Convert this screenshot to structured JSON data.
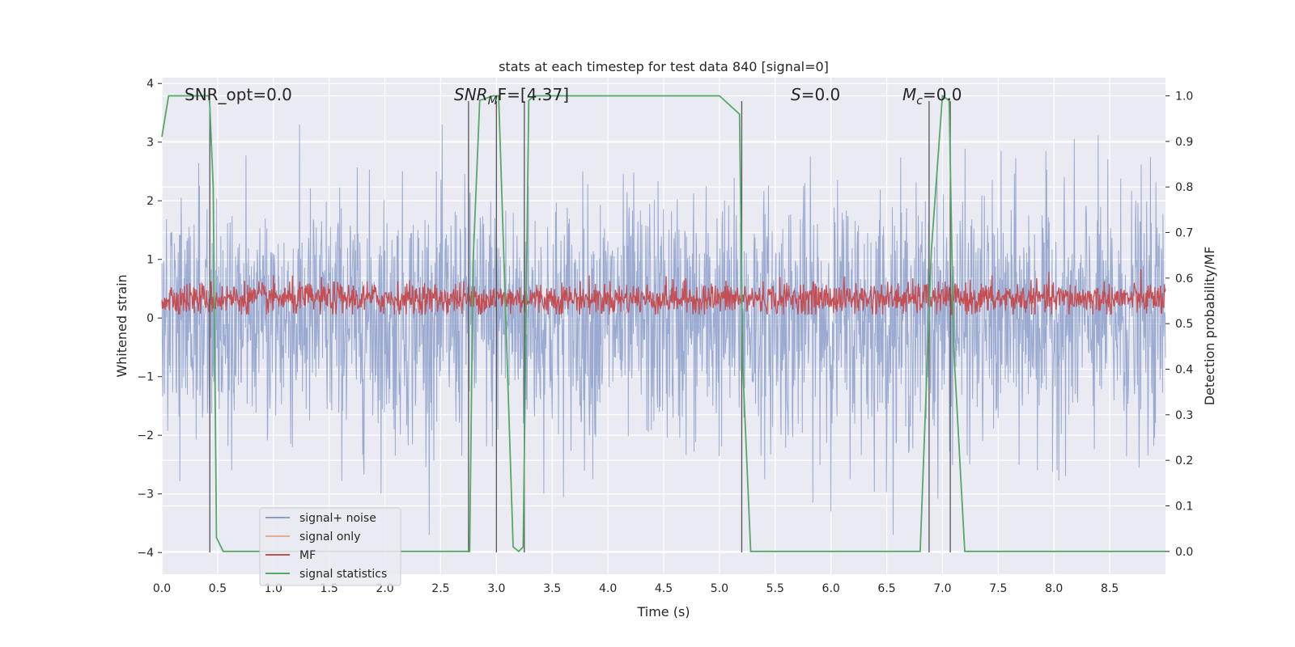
{
  "chart_data": {
    "type": "line",
    "title": "stats at each timestep for test data 840 [signal=0]",
    "xlabel": "Time (s)",
    "ylabel": "Whitened strain",
    "ylabel_right": "Detection probability/MF",
    "xlim": [
      0,
      9.0
    ],
    "ylim": [
      -4.37,
      4.1
    ],
    "ylim_right": [
      -0.05,
      1.04
    ],
    "x_ticks": [
      "0.0",
      "0.5",
      "1.0",
      "1.5",
      "2.0",
      "2.5",
      "3.0",
      "3.5",
      "4.0",
      "4.5",
      "5.0",
      "5.5",
      "6.0",
      "6.5",
      "7.0",
      "7.5",
      "8.0",
      "8.5"
    ],
    "y_ticks": [
      "4",
      "3",
      "2",
      "1",
      "0",
      "−1",
      "−2",
      "−3",
      "−4"
    ],
    "y_ticks_right": [
      "1.0",
      "0.9",
      "0.8",
      "0.7",
      "0.6",
      "0.5",
      "0.4",
      "0.3",
      "0.2",
      "0.1",
      "0.0"
    ],
    "grid": true,
    "legend_position": "lower-left",
    "annotations": {
      "snr_opt": "SNR_opt=0.0",
      "snr_mf_main": "SNR",
      "snr_mf_sub": "M",
      "snr_mf_rest": "F=[4.37]",
      "s_main": "S",
      "s_rest": "=0.0",
      "mc_main": "M",
      "mc_sub": "c",
      "mc_rest": "=0.0"
    },
    "series": [
      {
        "name": "signal+ noise",
        "color": "#8c9fcb",
        "description_range": [
          -3.7,
          3.3
        ]
      },
      {
        "name": "signal only",
        "color": "#dd8452",
        "values": []
      },
      {
        "name": "MF",
        "color": "#c44e52",
        "range_right_axis": [
          0.52,
          0.62
        ]
      },
      {
        "name": "signal statistics",
        "color": "#55a868",
        "axis": "right",
        "x": [
          0,
          0.06,
          0.42,
          0.43,
          0.46,
          0.49,
          0.55,
          1.0,
          2.0,
          2.76,
          2.79,
          2.85,
          2.97,
          3.02,
          3.15,
          3.2,
          3.24,
          3.29,
          3.34,
          4.0,
          5.0,
          5.18,
          5.21,
          5.28,
          6.0,
          6.8,
          6.9,
          7.0,
          7.06,
          7.1,
          7.2,
          8.0,
          9.0
        ],
        "y": [
          0.91,
          1.0,
          1.0,
          0.98,
          0.8,
          0.03,
          0.0,
          0.0,
          0.0,
          0.0,
          0.63,
          0.99,
          1.0,
          1.0,
          0.01,
          0.0,
          0.01,
          0.99,
          1.0,
          1.0,
          1.0,
          0.96,
          0.4,
          0.0,
          0.0,
          0.0,
          0.66,
          1.0,
          0.99,
          0.45,
          0.0,
          0.0,
          0.0
        ]
      }
    ],
    "vertical_lines_x": [
      0.43,
      2.75,
      3.0,
      3.25,
      5.2,
      6.88,
      7.07
    ]
  }
}
